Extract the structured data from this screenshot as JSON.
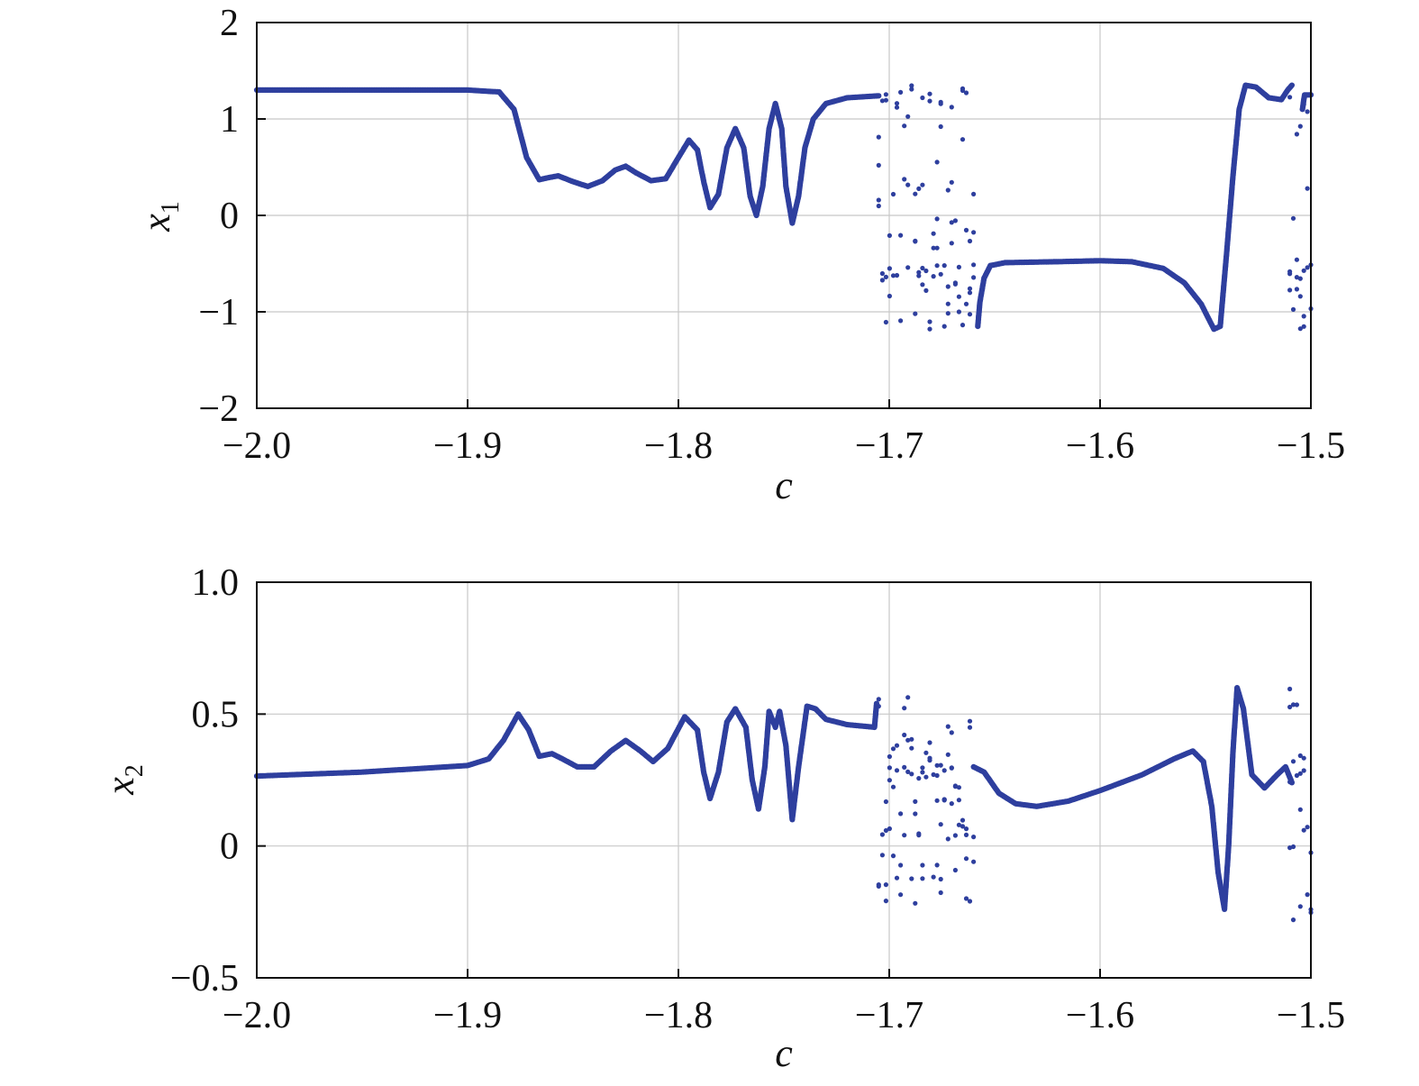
{
  "chart_data": [
    {
      "type": "scatter",
      "marker_color": "#2e3f9e",
      "xlabel": "c",
      "ylabel": "x",
      "ylabel_subscript": "1",
      "xlim": [
        -2.0,
        -1.5
      ],
      "ylim": [
        -2,
        2
      ],
      "x_ticks": [
        "−2.0",
        "−1.9",
        "−1.8",
        "−1.7",
        "−1.6",
        "−1.5"
      ],
      "x_tick_values": [
        -2.0,
        -1.9,
        -1.8,
        -1.7,
        -1.6,
        -1.5
      ],
      "y_ticks": [
        "2",
        "1",
        "0",
        "−1",
        "−2"
      ],
      "y_tick_values": [
        2,
        1,
        0,
        -1,
        -2
      ],
      "grid": true,
      "curve_segments": [
        [
          [
            -2.0,
            1.3
          ],
          [
            -1.9,
            1.3
          ],
          [
            -1.885,
            1.28
          ],
          [
            -1.878,
            1.1
          ],
          [
            -1.872,
            0.6
          ],
          [
            -1.866,
            0.37
          ],
          [
            -1.862,
            0.39
          ],
          [
            -1.857,
            0.41
          ],
          [
            -1.85,
            0.35
          ],
          [
            -1.843,
            0.3
          ],
          [
            -1.836,
            0.36
          ],
          [
            -1.83,
            0.47
          ],
          [
            -1.825,
            0.51
          ],
          [
            -1.82,
            0.44
          ],
          [
            -1.813,
            0.36
          ],
          [
            -1.806,
            0.38
          ],
          [
            -1.8,
            0.6
          ],
          [
            -1.795,
            0.78
          ],
          [
            -1.791,
            0.68
          ],
          [
            -1.788,
            0.35
          ],
          [
            -1.785,
            0.08
          ],
          [
            -1.781,
            0.22
          ],
          [
            -1.777,
            0.7
          ],
          [
            -1.773,
            0.9
          ],
          [
            -1.769,
            0.7
          ],
          [
            -1.766,
            0.2
          ],
          [
            -1.763,
            0.0
          ],
          [
            -1.76,
            0.3
          ],
          [
            -1.757,
            0.9
          ],
          [
            -1.754,
            1.16
          ],
          [
            -1.751,
            0.9
          ],
          [
            -1.749,
            0.3
          ],
          [
            -1.746,
            -0.08
          ],
          [
            -1.743,
            0.2
          ],
          [
            -1.74,
            0.7
          ],
          [
            -1.736,
            1.0
          ],
          [
            -1.73,
            1.16
          ],
          [
            -1.72,
            1.22
          ],
          [
            -1.705,
            1.24
          ]
        ],
        [
          [
            -1.658,
            -1.15
          ],
          [
            -1.657,
            -0.9
          ],
          [
            -1.655,
            -0.65
          ],
          [
            -1.652,
            -0.52
          ],
          [
            -1.645,
            -0.49
          ],
          [
            -1.62,
            -0.48
          ],
          [
            -1.6,
            -0.47
          ],
          [
            -1.585,
            -0.48
          ],
          [
            -1.57,
            -0.55
          ],
          [
            -1.56,
            -0.7
          ],
          [
            -1.552,
            -0.92
          ],
          [
            -1.546,
            -1.18
          ],
          [
            -1.543,
            -1.15
          ],
          [
            -1.54,
            -0.4
          ],
          [
            -1.537,
            0.4
          ],
          [
            -1.534,
            1.1
          ],
          [
            -1.531,
            1.35
          ],
          [
            -1.526,
            1.33
          ],
          [
            -1.52,
            1.22
          ],
          [
            -1.514,
            1.2
          ],
          [
            -1.511,
            1.3
          ],
          [
            -1.509,
            1.35
          ]
        ],
        [
          [
            -1.504,
            1.1
          ],
          [
            -1.503,
            1.25
          ],
          [
            -1.5,
            1.25
          ]
        ]
      ],
      "scatter_bands": [
        {
          "x_range": [
            -1.705,
            -1.66
          ],
          "y_values": [
            1.3,
            1.2,
            1.1,
            0.85,
            0.48,
            0.3,
            0.2,
            0.05,
            -0.1,
            -0.2,
            -0.3,
            -0.5,
            -0.55,
            -0.6,
            -0.65,
            -0.7,
            -0.8,
            -0.9,
            -1.0,
            -1.08,
            -1.15
          ]
        },
        {
          "x_range": [
            -1.51,
            -1.5
          ],
          "y_values": [
            1.15,
            0.85,
            0.6,
            0.2,
            -0.1,
            -0.5,
            -0.6,
            -0.7,
            -0.8,
            -0.9,
            -1.0,
            -1.1,
            -1.2
          ]
        }
      ]
    },
    {
      "type": "scatter",
      "marker_color": "#2e3f9e",
      "xlabel": "c",
      "ylabel": "x",
      "ylabel_subscript": "2",
      "xlim": [
        -2.0,
        -1.5
      ],
      "ylim": [
        -0.5,
        1.0
      ],
      "x_ticks": [
        "−2.0",
        "−1.9",
        "−1.8",
        "−1.7",
        "−1.6",
        "−1.5"
      ],
      "x_tick_values": [
        -2.0,
        -1.9,
        -1.8,
        -1.7,
        -1.6,
        -1.5
      ],
      "y_ticks": [
        "1.0",
        "0.5",
        "0",
        "−0.5"
      ],
      "y_tick_values": [
        1.0,
        0.5,
        0,
        -0.5
      ],
      "grid": true,
      "curve_segments": [
        [
          [
            -2.0,
            0.265
          ],
          [
            -1.95,
            0.28
          ],
          [
            -1.9,
            0.305
          ],
          [
            -1.89,
            0.33
          ],
          [
            -1.883,
            0.4
          ],
          [
            -1.876,
            0.5
          ],
          [
            -1.871,
            0.44
          ],
          [
            -1.866,
            0.34
          ],
          [
            -1.86,
            0.35
          ],
          [
            -1.855,
            0.33
          ],
          [
            -1.848,
            0.3
          ],
          [
            -1.84,
            0.3
          ],
          [
            -1.832,
            0.36
          ],
          [
            -1.825,
            0.4
          ],
          [
            -1.818,
            0.36
          ],
          [
            -1.812,
            0.32
          ],
          [
            -1.805,
            0.37
          ],
          [
            -1.797,
            0.49
          ],
          [
            -1.791,
            0.44
          ],
          [
            -1.788,
            0.28
          ],
          [
            -1.785,
            0.18
          ],
          [
            -1.781,
            0.28
          ],
          [
            -1.777,
            0.47
          ],
          [
            -1.773,
            0.52
          ],
          [
            -1.768,
            0.45
          ],
          [
            -1.765,
            0.25
          ],
          [
            -1.762,
            0.14
          ],
          [
            -1.759,
            0.3
          ],
          [
            -1.757,
            0.51
          ],
          [
            -1.754,
            0.45
          ],
          [
            -1.752,
            0.51
          ],
          [
            -1.749,
            0.38
          ],
          [
            -1.746,
            0.1
          ],
          [
            -1.743,
            0.3
          ],
          [
            -1.739,
            0.53
          ],
          [
            -1.735,
            0.52
          ],
          [
            -1.73,
            0.48
          ],
          [
            -1.72,
            0.46
          ],
          [
            -1.707,
            0.45
          ],
          [
            -1.706,
            0.54
          ]
        ],
        [
          [
            -1.66,
            0.3
          ],
          [
            -1.655,
            0.28
          ],
          [
            -1.648,
            0.2
          ],
          [
            -1.64,
            0.16
          ],
          [
            -1.63,
            0.15
          ],
          [
            -1.615,
            0.17
          ],
          [
            -1.6,
            0.21
          ],
          [
            -1.58,
            0.27
          ],
          [
            -1.565,
            0.33
          ],
          [
            -1.556,
            0.36
          ],
          [
            -1.551,
            0.32
          ],
          [
            -1.547,
            0.15
          ],
          [
            -1.544,
            -0.1
          ],
          [
            -1.541,
            -0.24
          ],
          [
            -1.539,
            0.0
          ],
          [
            -1.537,
            0.35
          ],
          [
            -1.535,
            0.6
          ],
          [
            -1.532,
            0.52
          ],
          [
            -1.528,
            0.27
          ],
          [
            -1.522,
            0.22
          ],
          [
            -1.516,
            0.27
          ],
          [
            -1.512,
            0.3
          ],
          [
            -1.509,
            0.24
          ]
        ]
      ],
      "scatter_bands": [
        {
          "x_range": [
            -1.705,
            -1.66
          ],
          "y_values": [
            0.55,
            0.5,
            0.45,
            0.4,
            0.35,
            0.3,
            0.28,
            0.25,
            0.2,
            0.15,
            0.1,
            0.06,
            0.04,
            -0.05,
            -0.12,
            -0.15,
            -0.2
          ]
        },
        {
          "x_range": [
            -1.51,
            -1.5
          ],
          "y_values": [
            0.6,
            0.55,
            0.5,
            0.35,
            0.3,
            0.25,
            0.2,
            0.15,
            0.05,
            0.0,
            -0.2,
            -0.27
          ]
        }
      ]
    }
  ]
}
